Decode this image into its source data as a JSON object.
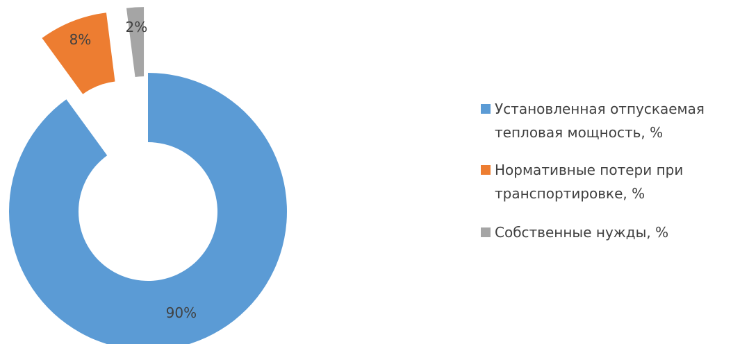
{
  "chart_data": {
    "type": "donut",
    "categories": [
      "Установленная отпускаемая тепловая мощность, %",
      "Нормативные потери при транспортировке, %",
      "Собственные нужды, %"
    ],
    "values": [
      90,
      8,
      2
    ],
    "value_labels": [
      "90%",
      "8%",
      "2%"
    ],
    "colors": [
      "#5b9bd5",
      "#ed7d31",
      "#a5a5a5"
    ],
    "legend": "right"
  }
}
